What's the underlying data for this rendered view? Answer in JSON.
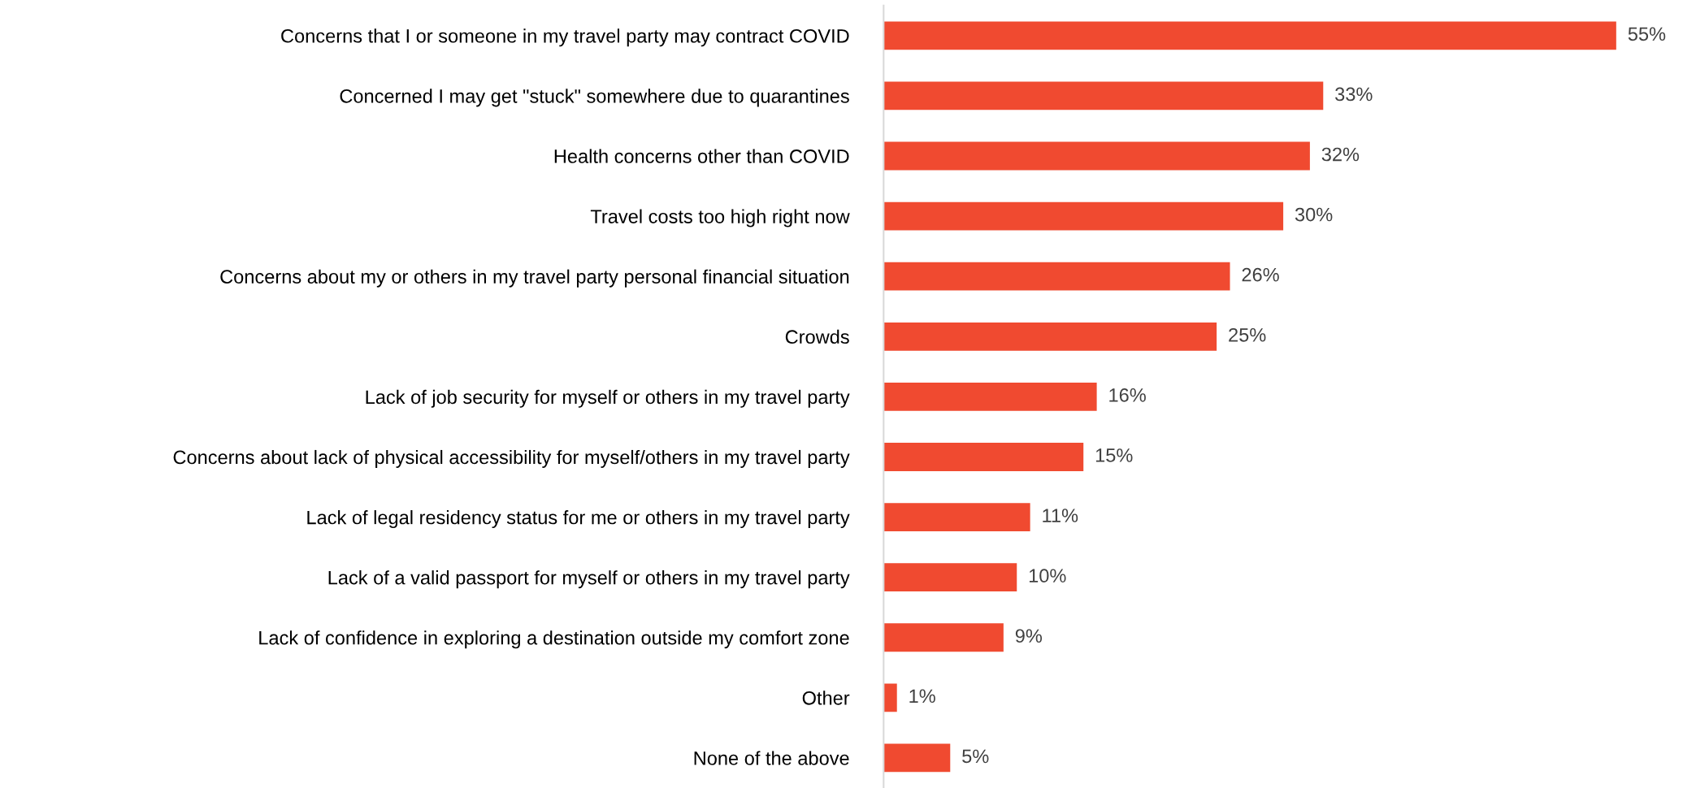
{
  "chart_data": {
    "type": "bar",
    "orientation": "horizontal",
    "categories": [
      "Concerns that I or someone in my travel party may contract COVID",
      "Concerned I may get \"stuck\" somewhere due to quarantines",
      "Health concerns other than COVID",
      "Travel costs too high right now",
      "Concerns about my or others in my travel party personal financial situation",
      "Crowds",
      "Lack of job security for myself or others in my travel party",
      "Concerns about lack of physical accessibility for myself/others in my travel party",
      "Lack of legal residency status for me or others in my travel party",
      "Lack of a valid passport for myself or others in my travel party",
      "Lack of confidence in exploring a destination outside my comfort zone",
      "Other",
      "None of the above"
    ],
    "values": [
      55,
      33,
      32,
      30,
      26,
      25,
      16,
      15,
      11,
      10,
      9,
      1,
      5
    ],
    "value_labels": [
      "55%",
      "33%",
      "32%",
      "30%",
      "26%",
      "25%",
      "16%",
      "15%",
      "11%",
      "10%",
      "9%",
      "1%",
      "5%"
    ],
    "color": "#f04a30",
    "grid": false,
    "legend": false
  }
}
